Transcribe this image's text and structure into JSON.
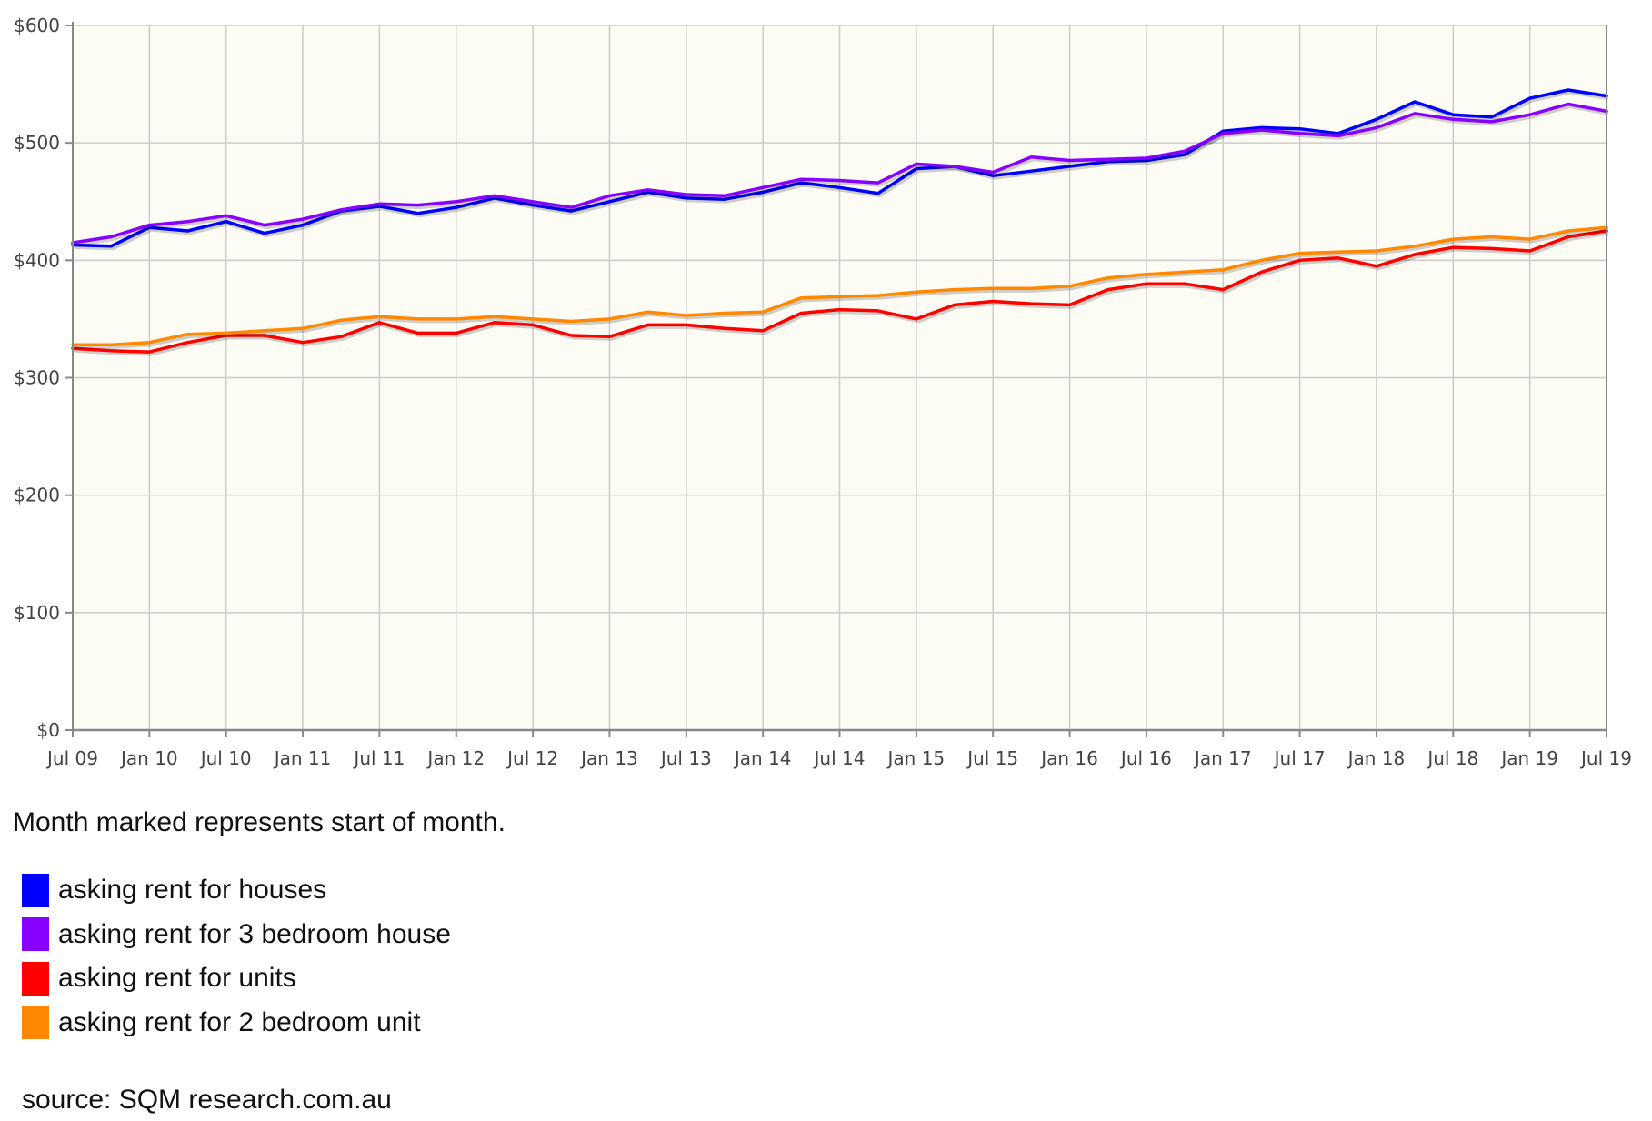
{
  "chart_data": {
    "type": "line",
    "title": "",
    "xlabel": "",
    "ylabel": "",
    "ylim": [
      0,
      600
    ],
    "y_ticks": [
      "$0",
      "$100",
      "$200",
      "$300",
      "$400",
      "$500",
      "$600"
    ],
    "y_tick_values": [
      0,
      100,
      200,
      300,
      400,
      500,
      600
    ],
    "x_ticks": [
      "Jul 09",
      "Jan 10",
      "Jul 10",
      "Jan 11",
      "Jul 11",
      "Jan 12",
      "Jul 12",
      "Jan 13",
      "Jul 13",
      "Jan 14",
      "Jul 14",
      "Jan 15",
      "Jul 15",
      "Jan 16",
      "Jul 16",
      "Jan 17",
      "Jul 17",
      "Jan 18",
      "Jul 18",
      "Jan 19",
      "Jul 19"
    ],
    "x": [
      "Jul 09",
      "Oct 09",
      "Jan 10",
      "Apr 10",
      "Jul 10",
      "Oct 10",
      "Jan 11",
      "Apr 11",
      "Jul 11",
      "Oct 11",
      "Jan 12",
      "Apr 12",
      "Jul 12",
      "Oct 12",
      "Jan 13",
      "Apr 13",
      "Jul 13",
      "Oct 13",
      "Jan 14",
      "Apr 14",
      "Jul 14",
      "Oct 14",
      "Jan 15",
      "Apr 15",
      "Jul 15",
      "Oct 15",
      "Jan 16",
      "Apr 16",
      "Jul 16",
      "Oct 16",
      "Jan 17",
      "Apr 17",
      "Jul 17",
      "Oct 17",
      "Jan 18",
      "Apr 18",
      "Jul 18",
      "Oct 18",
      "Jan 19",
      "Apr 19",
      "Jul 19"
    ],
    "grid": true,
    "legend_position": "bottom",
    "series": [
      {
        "name": "asking rent for houses",
        "color": "#0000ff",
        "values": [
          413,
          412,
          428,
          425,
          433,
          423,
          430,
          442,
          446,
          440,
          445,
          453,
          447,
          442,
          450,
          458,
          453,
          452,
          458,
          466,
          462,
          457,
          478,
          480,
          472,
          476,
          480,
          484,
          485,
          490,
          510,
          513,
          512,
          508,
          520,
          535,
          524,
          522,
          538,
          545,
          540
        ]
      },
      {
        "name": "asking rent for 3 bedroom house",
        "color": "#8800ff",
        "values": [
          415,
          420,
          430,
          433,
          438,
          430,
          435,
          443,
          448,
          447,
          450,
          455,
          450,
          445,
          455,
          460,
          456,
          455,
          462,
          469,
          468,
          466,
          482,
          480,
          475,
          488,
          485,
          486,
          487,
          493,
          508,
          511,
          508,
          506,
          513,
          525,
          520,
          518,
          524,
          533,
          527
        ]
      },
      {
        "name": "asking rent for units",
        "color": "#ff0000",
        "values": [
          325,
          323,
          322,
          330,
          336,
          336,
          330,
          335,
          347,
          338,
          338,
          347,
          345,
          336,
          335,
          345,
          345,
          342,
          340,
          355,
          358,
          357,
          350,
          362,
          365,
          363,
          362,
          375,
          380,
          380,
          375,
          390,
          400,
          402,
          395,
          405,
          411,
          410,
          408,
          420,
          425
        ]
      },
      {
        "name": "asking rent for 2 bedroom unit",
        "color": "#ff8800",
        "values": [
          328,
          328,
          330,
          337,
          338,
          340,
          342,
          349,
          352,
          350,
          350,
          352,
          350,
          348,
          350,
          356,
          353,
          355,
          356,
          368,
          369,
          370,
          373,
          375,
          376,
          376,
          378,
          385,
          388,
          390,
          392,
          400,
          406,
          407,
          408,
          412,
          418,
          420,
          418,
          425,
          428
        ]
      }
    ]
  },
  "note": "Month marked represents start of month.",
  "source": "source: SQM research.com.au",
  "colors": {
    "plot_background": "#fcfbf4",
    "grid": "#cccccc",
    "axis": "#888888"
  }
}
